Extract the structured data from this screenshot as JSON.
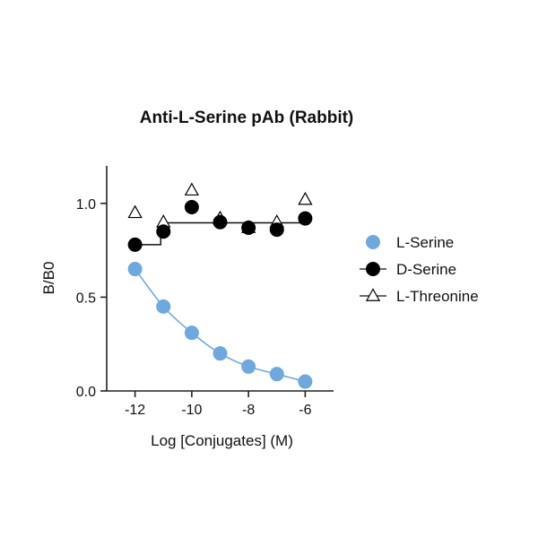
{
  "chart_data": {
    "type": "scatter",
    "title": "Anti-L-Serine pAb (Rabbit)",
    "xlabel": "Log [Conjugates] (M)",
    "ylabel": "B/B0",
    "xlim": [
      -13,
      -5
    ],
    "ylim": [
      0,
      1.2
    ],
    "xticks": [
      -12,
      -10,
      -8,
      -6
    ],
    "yticks": [
      0.0,
      0.5,
      1.0
    ],
    "xtick_labels": [
      "-12",
      "-10",
      "-8",
      "-6"
    ],
    "ytick_labels": [
      "0.0",
      "0.5",
      "1.0"
    ],
    "legend_position": "right",
    "series": [
      {
        "name": "L-Serine",
        "marker": "circle",
        "color": "#6fa8dc",
        "fill": "#6fa8dc",
        "fit": "curve",
        "x": [
          -12,
          -11,
          -10,
          -9,
          -8,
          -7,
          -6
        ],
        "y": [
          0.65,
          0.45,
          0.31,
          0.2,
          0.13,
          0.09,
          0.05
        ]
      },
      {
        "name": "D-Serine",
        "marker": "circle",
        "color": "#000000",
        "fill": "#000000",
        "fit": "step",
        "x": [
          -12,
          -11,
          -10,
          -9,
          -8,
          -7,
          -6
        ],
        "y": [
          0.78,
          0.85,
          0.98,
          0.9,
          0.87,
          0.86,
          0.92
        ]
      },
      {
        "name": "L-Threonine",
        "marker": "triangle",
        "color": "#000000",
        "fill": "#ffffff",
        "fit": "flat",
        "x": [
          -12,
          -11,
          -10,
          -9,
          -8,
          -7,
          -6
        ],
        "y": [
          0.95,
          0.9,
          1.07,
          0.92,
          0.87,
          0.9,
          1.02
        ]
      }
    ]
  }
}
